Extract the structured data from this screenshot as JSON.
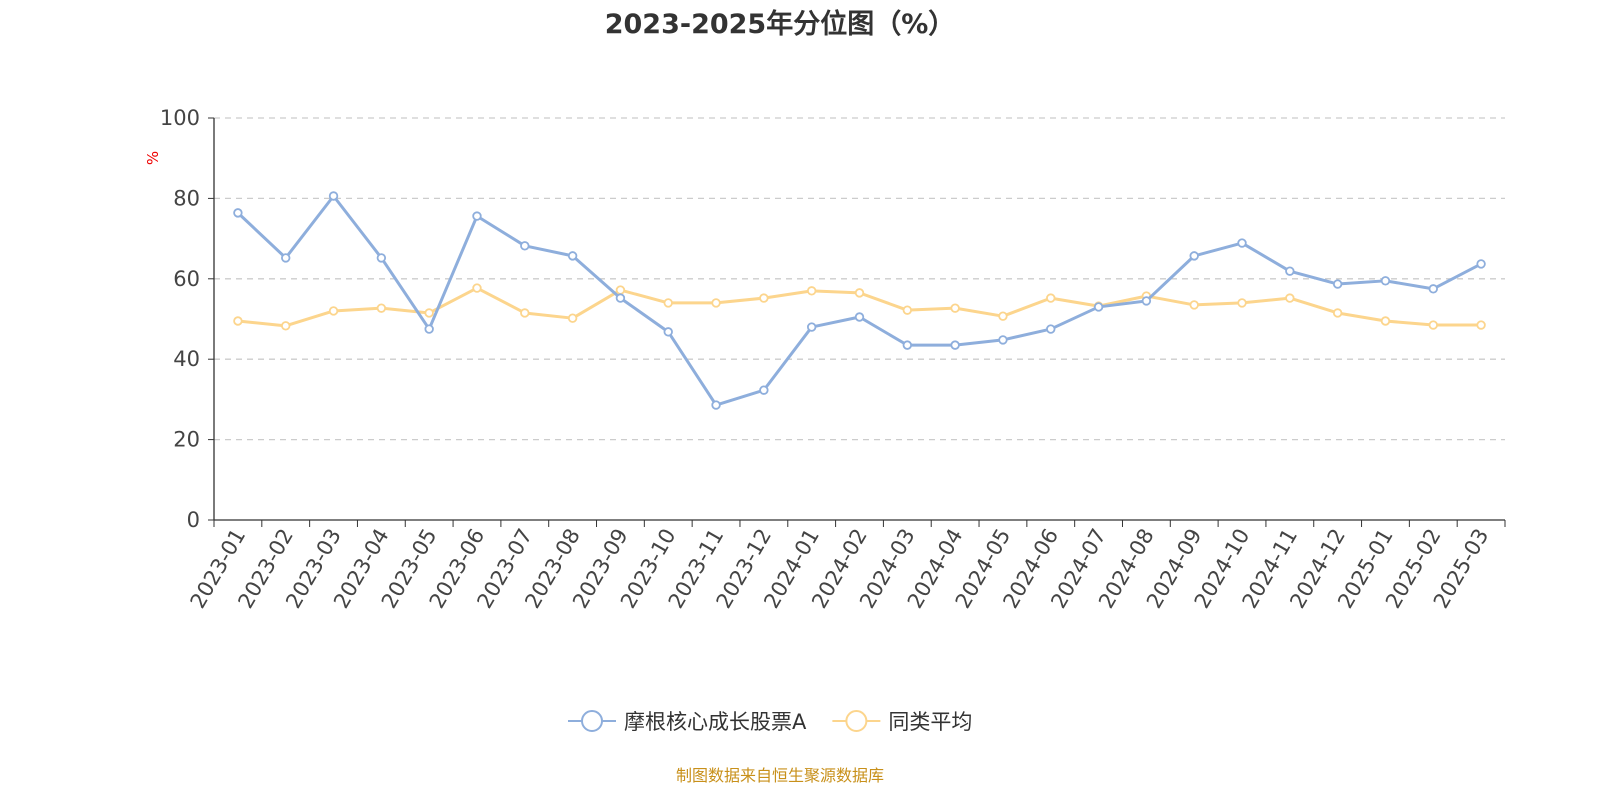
{
  "chart_data": {
    "type": "line",
    "title": "2023-2025年分位图（%）",
    "ylabel": "%",
    "xlabel": "",
    "ylim": [
      0,
      100
    ],
    "yticks": [
      0,
      20,
      40,
      60,
      80,
      100
    ],
    "grid": true,
    "legend_position": "bottom",
    "categories": [
      "2023-01",
      "2023-02",
      "2023-03",
      "2023-04",
      "2023-05",
      "2023-06",
      "2023-07",
      "2023-08",
      "2023-09",
      "2023-10",
      "2023-11",
      "2023-12",
      "2024-01",
      "2024-02",
      "2024-03",
      "2024-04",
      "2024-05",
      "2024-06",
      "2024-07",
      "2024-08",
      "2024-09",
      "2024-10",
      "2024-11",
      "2024-12",
      "2025-01",
      "2025-02",
      "2025-03"
    ],
    "series": [
      {
        "name": "摩根核心成长股票A",
        "color": "#8eaedc",
        "values": [
          76.4,
          65.2,
          80.6,
          65.2,
          47.5,
          75.6,
          68.2,
          65.7,
          55.2,
          46.8,
          28.6,
          32.3,
          48.0,
          50.5,
          43.5,
          43.5,
          44.8,
          47.5,
          53.0,
          54.5,
          65.7,
          68.9,
          61.9,
          58.7,
          59.5,
          57.5,
          63.7
        ]
      },
      {
        "name": "同类平均",
        "color": "#fcd58d",
        "values": [
          49.5,
          48.3,
          52.0,
          52.7,
          51.5,
          57.7,
          51.5,
          50.2,
          57.2,
          54.0,
          54.0,
          55.2,
          57.0,
          56.5,
          52.2,
          52.7,
          50.7,
          55.2,
          53.2,
          55.7,
          53.5,
          54.0,
          55.2,
          51.5,
          49.5,
          48.5,
          48.5
        ]
      }
    ]
  },
  "footer": "制图数据来自恒生聚源数据库"
}
